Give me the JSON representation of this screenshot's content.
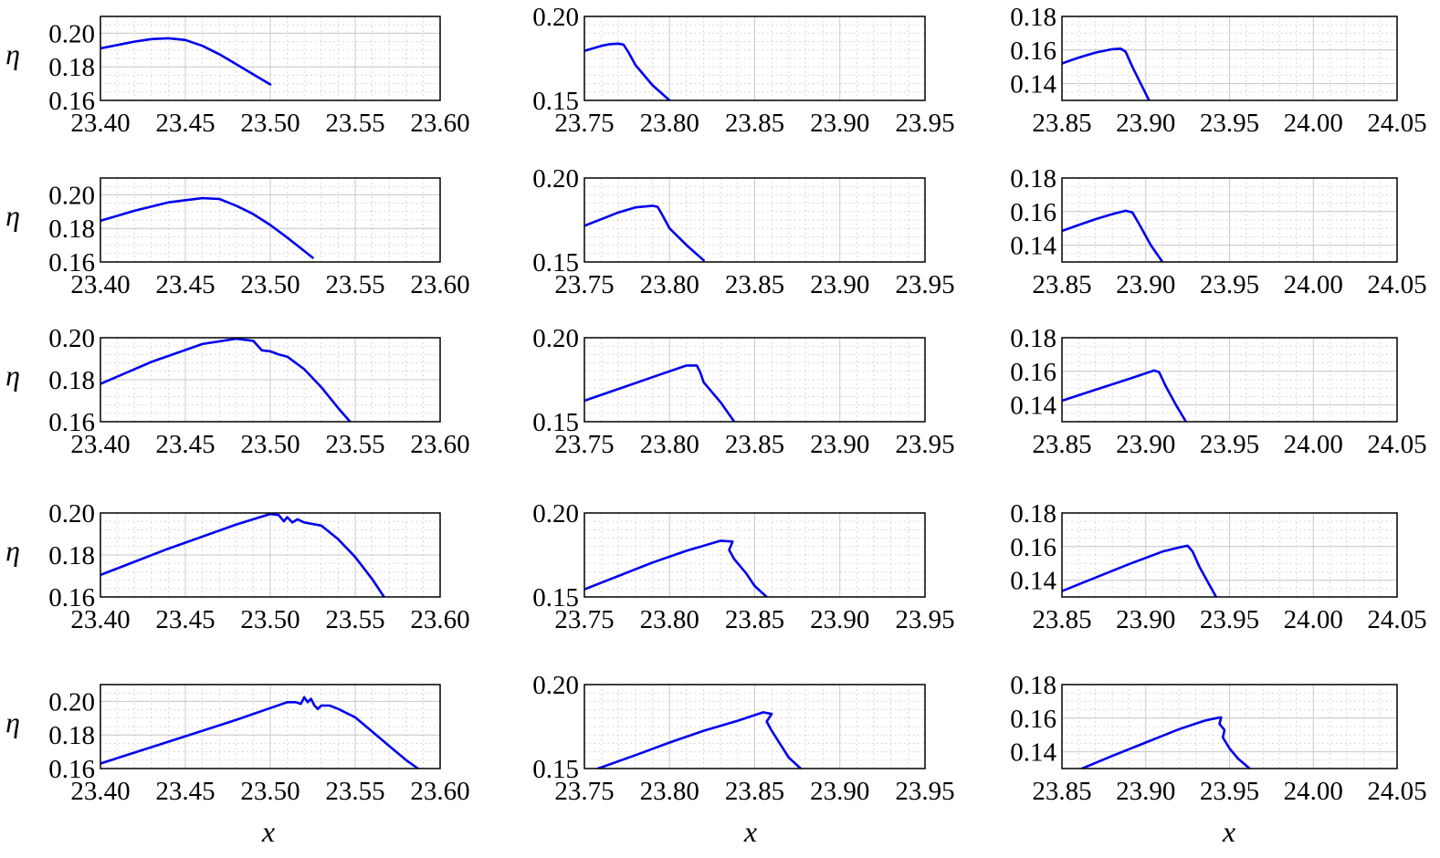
{
  "figure": {
    "x_label": "x",
    "y_label": "η"
  },
  "chart_data": [
    {
      "type": "line",
      "row": 0,
      "col": 0,
      "ylabel": "η",
      "xlabel": "",
      "xlim": [
        23.4,
        23.6
      ],
      "ylim": [
        0.16,
        0.21
      ],
      "xticks": [
        "23.40",
        "23.45",
        "23.50",
        "23.55",
        "23.60"
      ],
      "yticks": [
        "0.16",
        "0.18",
        "0.20"
      ],
      "series": [
        {
          "x": [
            23.4,
            23.42,
            23.43,
            23.44,
            23.45,
            23.46,
            23.47,
            23.48,
            23.49,
            23.5
          ],
          "y": [
            0.191,
            0.195,
            0.1965,
            0.197,
            0.196,
            0.1925,
            0.1875,
            0.1815,
            0.1755,
            0.1695
          ]
        }
      ]
    },
    {
      "type": "line",
      "row": 0,
      "col": 1,
      "ylabel": "",
      "xlabel": "",
      "xlim": [
        23.75,
        23.95
      ],
      "ylim": [
        0.15,
        0.2
      ],
      "xticks": [
        "23.75",
        "23.80",
        "23.85",
        "23.90",
        "23.95"
      ],
      "yticks": [
        "0.15",
        "0.20"
      ],
      "series": [
        {
          "x": [
            23.75,
            23.76,
            23.765,
            23.77,
            23.773,
            23.776,
            23.78,
            23.79,
            23.8
          ],
          "y": [
            0.1795,
            0.1825,
            0.1835,
            0.1838,
            0.1832,
            0.1785,
            0.171,
            0.159,
            0.15
          ]
        }
      ]
    },
    {
      "type": "line",
      "row": 0,
      "col": 2,
      "ylabel": "",
      "xlabel": "",
      "xlim": [
        23.85,
        24.05
      ],
      "ylim": [
        0.13,
        0.18
      ],
      "xticks": [
        "23.85",
        "23.90",
        "23.95",
        "24.00",
        "24.05"
      ],
      "yticks": [
        "0.14",
        "0.16",
        "0.18"
      ],
      "series": [
        {
          "x": [
            23.85,
            23.86,
            23.87,
            23.88,
            23.885,
            23.888,
            23.892,
            23.897,
            23.902
          ],
          "y": [
            0.152,
            0.1555,
            0.1585,
            0.1605,
            0.1608,
            0.159,
            0.15,
            0.14,
            0.13
          ]
        }
      ]
    },
    {
      "type": "line",
      "row": 1,
      "col": 0,
      "ylabel": "η",
      "xlabel": "",
      "xlim": [
        23.4,
        23.6
      ],
      "ylim": [
        0.16,
        0.21
      ],
      "xticks": [
        "23.40",
        "23.45",
        "23.50",
        "23.55",
        "23.60"
      ],
      "yticks": [
        "0.16",
        "0.18",
        "0.20"
      ],
      "series": [
        {
          "x": [
            23.4,
            23.42,
            23.44,
            23.46,
            23.47,
            23.475,
            23.48,
            23.49,
            23.5,
            23.51,
            23.52,
            23.525
          ],
          "y": [
            0.1845,
            0.1905,
            0.1955,
            0.198,
            0.1975,
            0.1955,
            0.1935,
            0.1885,
            0.182,
            0.1745,
            0.1665,
            0.1625
          ]
        }
      ]
    },
    {
      "type": "line",
      "row": 1,
      "col": 1,
      "ylabel": "",
      "xlabel": "",
      "xlim": [
        23.75,
        23.95
      ],
      "ylim": [
        0.15,
        0.2
      ],
      "xticks": [
        "23.75",
        "23.80",
        "23.85",
        "23.90",
        "23.95"
      ],
      "yticks": [
        "0.15",
        "0.20"
      ],
      "series": [
        {
          "x": [
            23.75,
            23.76,
            23.77,
            23.78,
            23.79,
            23.793,
            23.796,
            23.8,
            23.81,
            23.82
          ],
          "y": [
            0.1715,
            0.1755,
            0.1795,
            0.1825,
            0.1835,
            0.1828,
            0.1775,
            0.17,
            0.16,
            0.151
          ]
        }
      ]
    },
    {
      "type": "line",
      "row": 1,
      "col": 2,
      "ylabel": "",
      "xlabel": "",
      "xlim": [
        23.85,
        24.05
      ],
      "ylim": [
        0.13,
        0.18
      ],
      "xticks": [
        "23.85",
        "23.90",
        "23.95",
        "24.00",
        "24.05"
      ],
      "yticks": [
        "0.14",
        "0.16",
        "0.18"
      ],
      "series": [
        {
          "x": [
            23.85,
            23.86,
            23.87,
            23.88,
            23.888,
            23.892,
            23.897,
            23.903,
            23.91
          ],
          "y": [
            0.1485,
            0.152,
            0.1555,
            0.1585,
            0.1605,
            0.1595,
            0.151,
            0.14,
            0.13
          ]
        }
      ]
    },
    {
      "type": "line",
      "row": 2,
      "col": 0,
      "ylabel": "η",
      "xlabel": "",
      "xlim": [
        23.4,
        23.6
      ],
      "ylim": [
        0.16,
        0.2
      ],
      "xticks": [
        "23.40",
        "23.45",
        "23.50",
        "23.55",
        "23.60"
      ],
      "yticks": [
        "0.16",
        "0.18",
        "0.20"
      ],
      "series": [
        {
          "x": [
            23.4,
            23.43,
            23.46,
            23.48,
            23.49,
            23.495,
            23.5,
            23.505,
            23.51,
            23.52,
            23.53,
            23.54,
            23.547
          ],
          "y": [
            0.178,
            0.1885,
            0.197,
            0.1995,
            0.1985,
            0.194,
            0.1935,
            0.192,
            0.191,
            0.185,
            0.1765,
            0.1665,
            0.16
          ]
        }
      ]
    },
    {
      "type": "line",
      "row": 2,
      "col": 1,
      "ylabel": "",
      "xlabel": "",
      "xlim": [
        23.75,
        23.95
      ],
      "ylim": [
        0.15,
        0.2
      ],
      "xticks": [
        "23.75",
        "23.80",
        "23.85",
        "23.90",
        "23.95"
      ],
      "yticks": [
        "0.15",
        "0.20"
      ],
      "series": [
        {
          "x": [
            23.75,
            23.77,
            23.79,
            23.81,
            23.816,
            23.818,
            23.82,
            23.83,
            23.838
          ],
          "y": [
            0.1625,
            0.1695,
            0.1765,
            0.1835,
            0.1835,
            0.1795,
            0.1735,
            0.1615,
            0.15
          ]
        }
      ]
    },
    {
      "type": "line",
      "row": 2,
      "col": 2,
      "ylabel": "",
      "xlabel": "",
      "xlim": [
        23.85,
        24.05
      ],
      "ylim": [
        0.13,
        0.18
      ],
      "xticks": [
        "23.85",
        "23.90",
        "23.95",
        "24.00",
        "24.05"
      ],
      "yticks": [
        "0.14",
        "0.16",
        "0.18"
      ],
      "series": [
        {
          "x": [
            23.85,
            23.87,
            23.89,
            23.905,
            23.908,
            23.912,
            23.918,
            23.924
          ],
          "y": [
            0.1425,
            0.149,
            0.1555,
            0.1605,
            0.1595,
            0.151,
            0.14,
            0.13
          ]
        }
      ]
    },
    {
      "type": "line",
      "row": 3,
      "col": 0,
      "ylabel": "η",
      "xlabel": "",
      "xlim": [
        23.4,
        23.6
      ],
      "ylim": [
        0.16,
        0.2
      ],
      "xticks": [
        "23.40",
        "23.45",
        "23.50",
        "23.55",
        "23.60"
      ],
      "yticks": [
        "0.16",
        "0.18",
        "0.20"
      ],
      "series": [
        {
          "x": [
            23.4,
            23.44,
            23.48,
            23.5,
            23.505,
            23.508,
            23.51,
            23.513,
            23.516,
            23.52,
            23.53,
            23.54,
            23.55,
            23.56,
            23.567
          ],
          "y": [
            0.1705,
            0.183,
            0.1945,
            0.1995,
            0.199,
            0.196,
            0.198,
            0.1955,
            0.197,
            0.1955,
            0.194,
            0.1875,
            0.179,
            0.1685,
            0.16
          ]
        }
      ]
    },
    {
      "type": "line",
      "row": 3,
      "col": 1,
      "ylabel": "",
      "xlabel": "",
      "xlim": [
        23.75,
        23.95
      ],
      "ylim": [
        0.15,
        0.2
      ],
      "xticks": [
        "23.75",
        "23.80",
        "23.85",
        "23.90",
        "23.95"
      ],
      "yticks": [
        "0.15",
        "0.20"
      ],
      "series": [
        {
          "x": [
            23.75,
            23.77,
            23.79,
            23.81,
            23.83,
            23.837,
            23.835,
            23.838,
            23.845,
            23.85,
            23.857
          ],
          "y": [
            0.1545,
            0.1625,
            0.1705,
            0.1775,
            0.1835,
            0.183,
            0.178,
            0.1725,
            0.164,
            0.1565,
            0.15
          ]
        }
      ]
    },
    {
      "type": "line",
      "row": 3,
      "col": 2,
      "ylabel": "",
      "xlabel": "",
      "xlim": [
        23.85,
        24.05
      ],
      "ylim": [
        0.13,
        0.18
      ],
      "xticks": [
        "23.85",
        "23.90",
        "23.95",
        "24.00",
        "24.05"
      ],
      "yticks": [
        "0.14",
        "0.16",
        "0.18"
      ],
      "series": [
        {
          "x": [
            23.85,
            23.87,
            23.89,
            23.91,
            23.92,
            23.925,
            23.928,
            23.932,
            23.937,
            23.942
          ],
          "y": [
            0.1335,
            0.1415,
            0.1495,
            0.157,
            0.1595,
            0.1605,
            0.157,
            0.148,
            0.139,
            0.13
          ]
        }
      ]
    },
    {
      "type": "line",
      "row": 4,
      "col": 0,
      "ylabel": "η",
      "xlabel": "x",
      "xlim": [
        23.4,
        23.6
      ],
      "ylim": [
        0.16,
        0.21
      ],
      "xticks": [
        "23.40",
        "23.45",
        "23.50",
        "23.55",
        "23.60"
      ],
      "yticks": [
        "0.16",
        "0.18",
        "0.20"
      ],
      "series": [
        {
          "x": [
            23.4,
            23.44,
            23.48,
            23.51,
            23.515,
            23.518,
            23.52,
            23.522,
            23.524,
            23.526,
            23.528,
            23.53,
            23.535,
            23.54,
            23.55,
            23.56,
            23.57,
            23.58,
            23.587
          ],
          "y": [
            0.163,
            0.176,
            0.189,
            0.1995,
            0.1995,
            0.1985,
            0.2025,
            0.1995,
            0.2015,
            0.1975,
            0.1955,
            0.1975,
            0.1975,
            0.1955,
            0.1905,
            0.182,
            0.1735,
            0.165,
            0.16
          ]
        }
      ]
    },
    {
      "type": "line",
      "row": 4,
      "col": 1,
      "ylabel": "",
      "xlabel": "x",
      "xlim": [
        23.75,
        23.95
      ],
      "ylim": [
        0.15,
        0.2
      ],
      "xticks": [
        "23.75",
        "23.80",
        "23.85",
        "23.90",
        "23.95"
      ],
      "yticks": [
        "0.15",
        "0.20"
      ],
      "series": [
        {
          "x": [
            23.758,
            23.78,
            23.8,
            23.82,
            23.84,
            23.855,
            23.86,
            23.857,
            23.86,
            23.865,
            23.87,
            23.877
          ],
          "y": [
            0.15,
            0.158,
            0.1655,
            0.1725,
            0.1785,
            0.1835,
            0.1825,
            0.178,
            0.1725,
            0.1645,
            0.1565,
            0.15
          ]
        }
      ]
    },
    {
      "type": "line",
      "row": 4,
      "col": 2,
      "ylabel": "",
      "xlabel": "x",
      "xlim": [
        23.85,
        24.05
      ],
      "ylim": [
        0.13,
        0.18
      ],
      "xticks": [
        "23.85",
        "23.90",
        "23.95",
        "24.00",
        "24.05"
      ],
      "yticks": [
        "0.14",
        "0.16",
        "0.18"
      ],
      "series": [
        {
          "x": [
            23.862,
            23.88,
            23.9,
            23.92,
            23.935,
            23.942,
            23.945,
            23.944,
            23.947,
            23.946,
            23.95,
            23.955,
            23.962
          ],
          "y": [
            0.13,
            0.1375,
            0.1455,
            0.1535,
            0.1585,
            0.16,
            0.1605,
            0.1565,
            0.153,
            0.1485,
            0.142,
            0.136,
            0.13
          ]
        }
      ]
    }
  ]
}
